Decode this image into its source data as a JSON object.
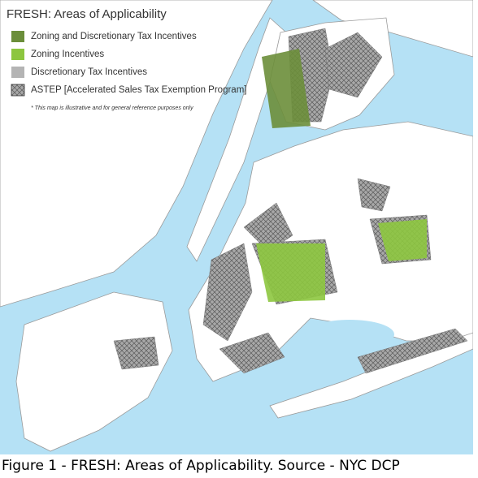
{
  "map": {
    "title": "FRESH: Areas of Applicability",
    "legend": [
      {
        "label": "Zoning and Discretionary Tax Incentives",
        "color": "#6b8e3a"
      },
      {
        "label": "Zoning Incentives",
        "color": "#8dc63f"
      },
      {
        "label": "Discretionary Tax Incentives",
        "color": "#b4b4b4"
      },
      {
        "label": "ASTEP [Accelerated Sales Tax Exemption Program]"
      }
    ],
    "note": "* This map is illustrative and for general reference purposes only"
  },
  "caption": "Figure 1 - FRESH: Areas of Applicability. Source - NYC DCP"
}
